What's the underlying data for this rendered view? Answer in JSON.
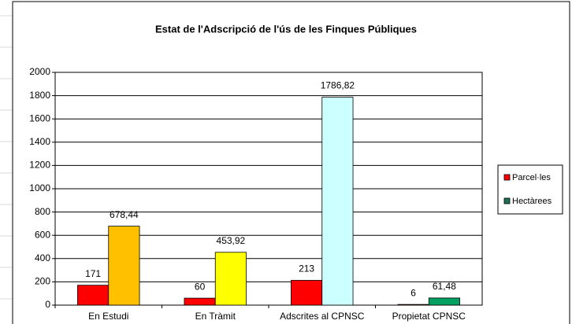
{
  "chart_data": {
    "type": "bar",
    "title": "Estat de l'Adscripció de l'ús de les Finques Públiques",
    "categories": [
      "En Estudi",
      "En Tràmit",
      "Adscrites al CPNSC",
      "Propietat CPNSC"
    ],
    "series": [
      {
        "name": "Parcel·les",
        "color": "#ff0000",
        "colors": [
          "#ff0000",
          "#ff0000",
          "#ff0000",
          "#ff0000"
        ],
        "values": [
          171,
          60,
          213,
          6
        ]
      },
      {
        "name": "Hectàrees",
        "color": "#1f7050",
        "colors": [
          "#ffc000",
          "#ffff00",
          "#ccffff",
          "#00a060"
        ],
        "values": [
          678.44,
          453.92,
          1786.82,
          61.48
        ],
        "value_labels": [
          "678,44",
          "453,92",
          "1786,82",
          "61,48"
        ]
      }
    ],
    "ylim": [
      0,
      2000
    ],
    "yticks": [
      0,
      200,
      400,
      600,
      800,
      1000,
      1200,
      1400,
      1600,
      1800,
      2000
    ],
    "grid": true,
    "legend": "right"
  }
}
